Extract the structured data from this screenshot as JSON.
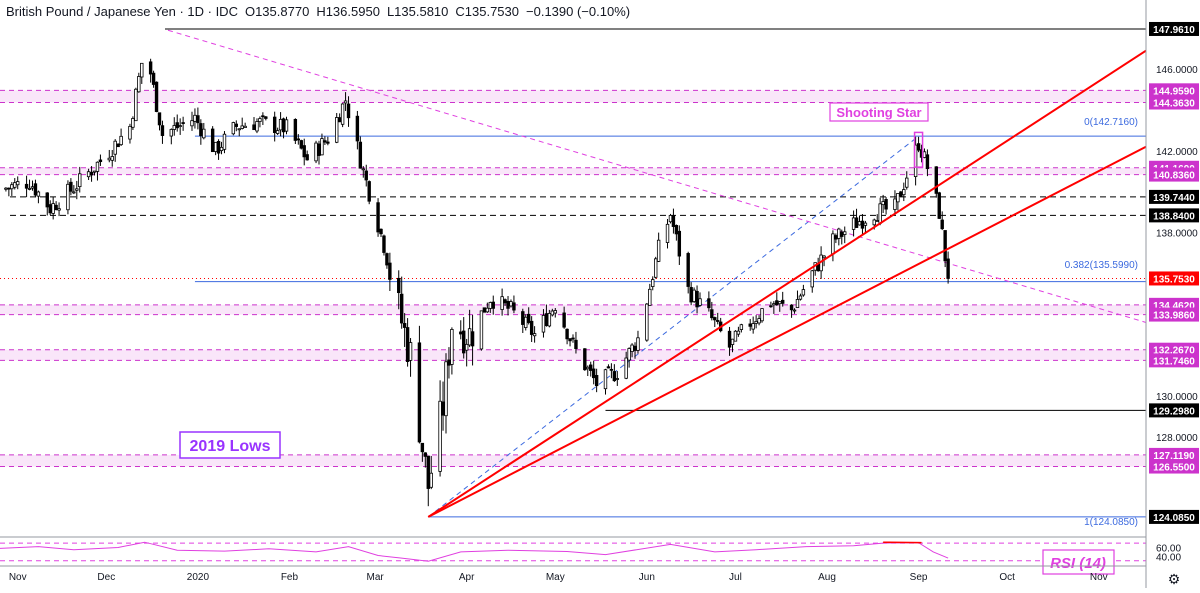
{
  "header": {
    "symbol": "British Pound / Japanese Yen · 1D · IDC",
    "open": "O135.8770",
    "high": "H136.5950",
    "low": "L135.5810",
    "close": "C135.7530",
    "change": "−0.1390 (−0.10%)"
  },
  "colors": {
    "up_candle": "#ffffff",
    "down_candle": "#000000",
    "trendline": "#ff0000",
    "support_zone": "#cc33cc",
    "fib_line": "#3c6adf",
    "rsi_line": "#e040e0",
    "label_bg": "#000000",
    "current_price_bg": "#ff0000",
    "accent_label": "#9933ff"
  },
  "annotations": {
    "shooting_star": "Shooting Star",
    "lows_2019": "2019 Lows",
    "rsi": "RSI (14)",
    "fib_0": "0(142.7160)",
    "fib_0382": "0.382(135.5990)",
    "fib_1": "1(124.0850)"
  },
  "chart_data": {
    "type": "candlestick",
    "y_axis": {
      "ylim": [
        123.2,
        148.4
      ],
      "ticks": [
        {
          "v": 146.0,
          "t": "146.0000"
        },
        {
          "v": 142.0,
          "t": "142.0000"
        },
        {
          "v": 138.0,
          "t": "138.0000"
        },
        {
          "v": 130.0,
          "t": "130.0000"
        },
        {
          "v": 128.0,
          "t": "128.0000"
        }
      ],
      "price_labels": [
        {
          "v": 147.961,
          "t": "147.9610",
          "kind": "black"
        },
        {
          "v": 144.959,
          "t": "144.9590",
          "kind": "zone"
        },
        {
          "v": 144.363,
          "t": "144.3630",
          "kind": "zone"
        },
        {
          "v": 141.169,
          "t": "141.1690",
          "kind": "zone"
        },
        {
          "v": 140.836,
          "t": "140.8360",
          "kind": "zone"
        },
        {
          "v": 139.744,
          "t": "139.7440",
          "kind": "black"
        },
        {
          "v": 138.84,
          "t": "138.8400",
          "kind": "black"
        },
        {
          "v": 135.753,
          "t": "135.7530",
          "kind": "current"
        },
        {
          "v": 134.462,
          "t": "134.4620",
          "kind": "zone"
        },
        {
          "v": 133.986,
          "t": "133.9860",
          "kind": "zone"
        },
        {
          "v": 132.267,
          "t": "132.2670",
          "kind": "zone"
        },
        {
          "v": 131.746,
          "t": "131.7460",
          "kind": "zone"
        },
        {
          "v": 129.298,
          "t": "129.2980",
          "kind": "black"
        },
        {
          "v": 127.119,
          "t": "127.1190",
          "kind": "zone"
        },
        {
          "v": 126.55,
          "t": "126.5500",
          "kind": "zone"
        },
        {
          "v": 124.085,
          "t": "124.0850",
          "kind": "black"
        }
      ]
    },
    "x_axis": {
      "start": "2019-10-26",
      "end": "2020-11-17",
      "labels": [
        {
          "date": "2019-11-01",
          "t": "Nov"
        },
        {
          "date": "2019-12-01",
          "t": "Dec"
        },
        {
          "date": "2020-01-01",
          "t": "2020"
        },
        {
          "date": "2020-02-01",
          "t": "Feb"
        },
        {
          "date": "2020-03-01",
          "t": "Mar"
        },
        {
          "date": "2020-04-01",
          "t": "Apr"
        },
        {
          "date": "2020-05-01",
          "t": "May"
        },
        {
          "date": "2020-06-01",
          "t": "Jun"
        },
        {
          "date": "2020-07-01",
          "t": "Jul"
        },
        {
          "date": "2020-08-01",
          "t": "Aug"
        },
        {
          "date": "2020-09-01",
          "t": "Sep"
        },
        {
          "date": "2020-10-01",
          "t": "Oct"
        },
        {
          "date": "2020-11-01",
          "t": "Nov"
        }
      ]
    },
    "price_path": [
      {
        "date": "2019-10-26",
        "close": 140.1
      },
      {
        "date": "2019-11-05",
        "close": 140.5
      },
      {
        "date": "2019-11-12",
        "close": 139.2
      },
      {
        "date": "2019-11-20",
        "close": 140.2
      },
      {
        "date": "2019-12-01",
        "close": 141.8
      },
      {
        "date": "2019-12-09",
        "close": 143.2
      },
      {
        "date": "2019-12-13",
        "close": 146.3
      },
      {
        "date": "2019-12-16",
        "close": 145.8
      },
      {
        "date": "2019-12-20",
        "close": 142.8
      },
      {
        "date": "2019-12-31",
        "close": 143.6
      },
      {
        "date": "2020-01-07",
        "close": 142.0
      },
      {
        "date": "2020-01-14",
        "close": 143.2
      },
      {
        "date": "2020-01-21",
        "close": 143.4
      },
      {
        "date": "2020-01-31",
        "close": 143.1
      },
      {
        "date": "2020-02-07",
        "close": 141.6
      },
      {
        "date": "2020-02-14",
        "close": 142.6
      },
      {
        "date": "2020-02-20",
        "close": 144.5
      },
      {
        "date": "2020-02-26",
        "close": 141.0
      },
      {
        "date": "2020-03-04",
        "close": 137.4
      },
      {
        "date": "2020-03-09",
        "close": 134.2
      },
      {
        "date": "2020-03-13",
        "close": 132.0
      },
      {
        "date": "2020-03-17",
        "close": 127.5
      },
      {
        "date": "2020-03-19",
        "close": 125.6
      },
      {
        "date": "2020-03-24",
        "close": 129.5
      },
      {
        "date": "2020-03-27",
        "close": 133.6
      },
      {
        "date": "2020-04-02",
        "close": 133.0
      },
      {
        "date": "2020-04-09",
        "close": 134.8
      },
      {
        "date": "2020-04-16",
        "close": 134.2
      },
      {
        "date": "2020-04-24",
        "close": 133.0
      },
      {
        "date": "2020-05-01",
        "close": 134.5
      },
      {
        "date": "2020-05-08",
        "close": 132.2
      },
      {
        "date": "2020-05-15",
        "close": 130.6
      },
      {
        "date": "2020-05-22",
        "close": 131.2
      },
      {
        "date": "2020-05-29",
        "close": 132.8
      },
      {
        "date": "2020-06-05",
        "close": 137.2
      },
      {
        "date": "2020-06-09",
        "close": 138.9
      },
      {
        "date": "2020-06-15",
        "close": 135.2
      },
      {
        "date": "2020-06-22",
        "close": 134.0
      },
      {
        "date": "2020-06-29",
        "close": 132.4
      },
      {
        "date": "2020-07-06",
        "close": 133.6
      },
      {
        "date": "2020-07-13",
        "close": 134.6
      },
      {
        "date": "2020-07-20",
        "close": 134.2
      },
      {
        "date": "2020-07-27",
        "close": 136.0
      },
      {
        "date": "2020-08-03",
        "close": 137.6
      },
      {
        "date": "2020-08-10",
        "close": 138.4
      },
      {
        "date": "2020-08-17",
        "close": 139.0
      },
      {
        "date": "2020-08-24",
        "close": 139.2
      },
      {
        "date": "2020-08-28",
        "close": 140.8
      },
      {
        "date": "2020-09-01",
        "close": 142.4
      },
      {
        "date": "2020-09-04",
        "close": 141.2
      },
      {
        "date": "2020-09-08",
        "close": 139.0
      },
      {
        "date": "2020-09-10",
        "close": 136.8
      },
      {
        "date": "2020-09-11",
        "close": 135.753
      }
    ],
    "levels": {
      "support_zones": [
        [
          144.363,
          144.959
        ],
        [
          140.836,
          141.169
        ],
        [
          133.986,
          134.462
        ],
        [
          131.746,
          132.267
        ],
        [
          126.55,
          127.119
        ]
      ],
      "dashed_levels": [
        139.744,
        138.84
      ],
      "solid_levels": [
        147.961,
        129.298,
        124.085
      ],
      "fib_levels": [
        142.716,
        135.599,
        124.085
      ]
    },
    "trendlines": [
      {
        "from": {
          "date": "2020-03-19",
          "price": 124.085
        },
        "to": {
          "date": "2020-11-17",
          "price": 146.9
        }
      },
      {
        "from": {
          "date": "2020-03-19",
          "price": 124.085
        },
        "to": {
          "date": "2020-11-17",
          "price": 142.2
        }
      }
    ],
    "rsi": {
      "name": "RSI (14)",
      "ticks": [
        {
          "v": 60,
          "t": "60.00"
        },
        {
          "v": 40,
          "t": "40.00"
        }
      ],
      "bands": [
        70,
        30
      ],
      "ylim": [
        25,
        77
      ],
      "values": [
        {
          "date": "2019-10-26",
          "v": 58
        },
        {
          "date": "2019-11-08",
          "v": 62
        },
        {
          "date": "2019-11-20",
          "v": 55
        },
        {
          "date": "2019-12-05",
          "v": 60
        },
        {
          "date": "2019-12-14",
          "v": 72
        },
        {
          "date": "2019-12-25",
          "v": 54
        },
        {
          "date": "2020-01-10",
          "v": 52
        },
        {
          "date": "2020-01-25",
          "v": 57
        },
        {
          "date": "2020-02-10",
          "v": 50
        },
        {
          "date": "2020-02-21",
          "v": 62
        },
        {
          "date": "2020-03-02",
          "v": 42
        },
        {
          "date": "2020-03-10",
          "v": 36
        },
        {
          "date": "2020-03-19",
          "v": 29
        },
        {
          "date": "2020-03-30",
          "v": 50
        },
        {
          "date": "2020-04-15",
          "v": 54
        },
        {
          "date": "2020-05-05",
          "v": 51
        },
        {
          "date": "2020-05-18",
          "v": 44
        },
        {
          "date": "2020-06-09",
          "v": 67
        },
        {
          "date": "2020-06-24",
          "v": 50
        },
        {
          "date": "2020-07-08",
          "v": 55
        },
        {
          "date": "2020-07-25",
          "v": 62
        },
        {
          "date": "2020-08-10",
          "v": 64
        },
        {
          "date": "2020-08-20",
          "v": 70
        },
        {
          "date": "2020-09-01",
          "v": 71
        },
        {
          "date": "2020-09-06",
          "v": 50
        },
        {
          "date": "2020-09-11",
          "v": 36
        }
      ],
      "divergence": {
        "from": {
          "date": "2020-08-20",
          "v": 72
        },
        "to": {
          "date": "2020-09-02",
          "v": 71
        }
      }
    }
  }
}
